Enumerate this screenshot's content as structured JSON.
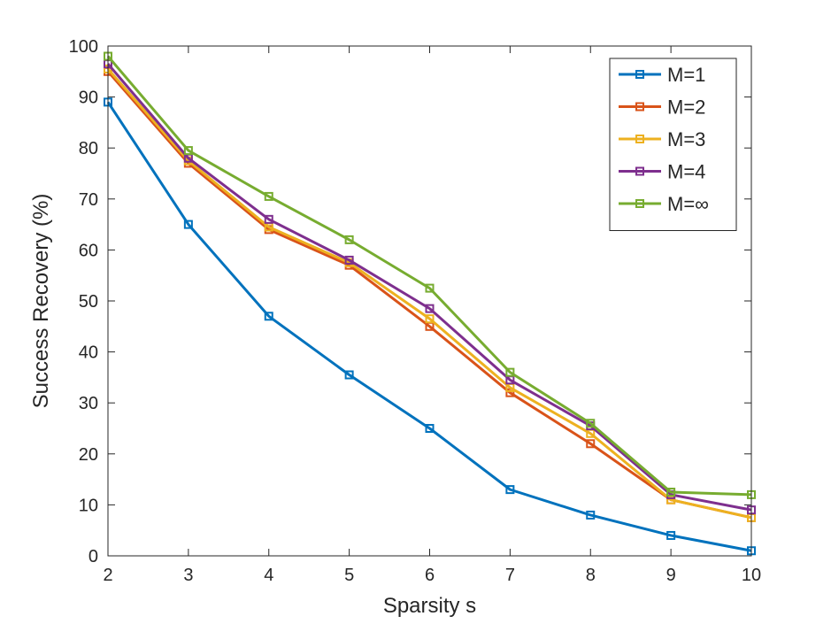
{
  "chart_data": {
    "type": "line",
    "title": "",
    "xlabel": "Sparsity s",
    "ylabel": "Success Recovery (%)",
    "xlim": [
      2,
      10
    ],
    "ylim": [
      0,
      100
    ],
    "x": [
      2,
      3,
      4,
      5,
      6,
      7,
      8,
      9,
      10
    ],
    "x_ticks": [
      2,
      3,
      4,
      5,
      6,
      7,
      8,
      9,
      10
    ],
    "y_ticks": [
      0,
      10,
      20,
      30,
      40,
      50,
      60,
      70,
      80,
      90,
      100
    ],
    "grid": false,
    "legend_position": "top-right",
    "marker": "square",
    "series": [
      {
        "name": "M=1",
        "color": "#0072BD",
        "values": [
          89,
          65,
          47,
          35.5,
          25,
          13,
          8,
          4,
          1
        ]
      },
      {
        "name": "M=2",
        "color": "#D95319",
        "values": [
          95,
          77,
          64,
          57,
          45,
          32,
          22,
          11,
          7.5
        ]
      },
      {
        "name": "M=3",
        "color": "#EDB120",
        "values": [
          95.5,
          77.5,
          64.5,
          57.5,
          46.5,
          33,
          24,
          11,
          7.5
        ]
      },
      {
        "name": "M=4",
        "color": "#7E2F8E",
        "values": [
          96.5,
          78,
          66,
          58,
          48.5,
          34.5,
          25.5,
          12,
          9
        ]
      },
      {
        "name": "M=∞",
        "color": "#77AC30",
        "values": [
          98,
          79.5,
          70.5,
          62,
          52.5,
          36,
          26,
          12.5,
          12
        ]
      }
    ]
  }
}
